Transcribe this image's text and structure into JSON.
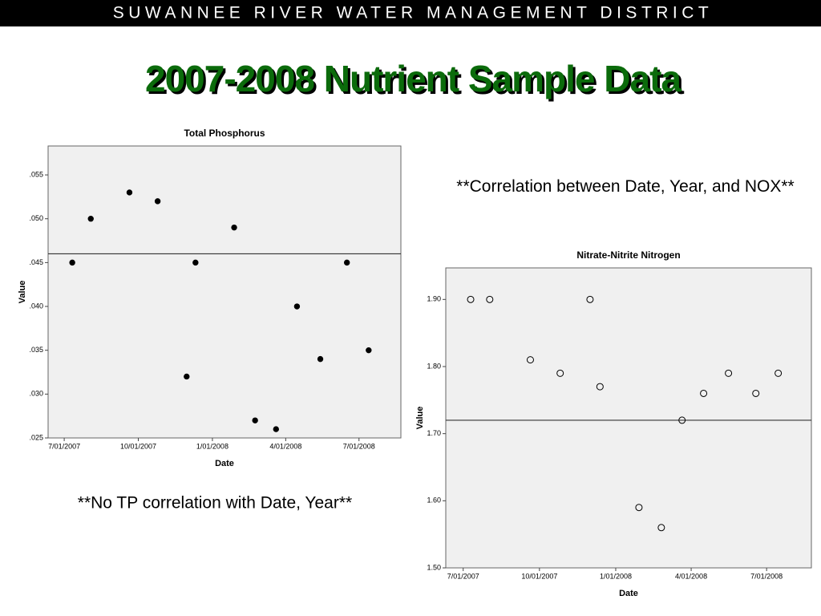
{
  "header": "SUWANNEE RIVER WATER MANAGEMENT DISTRICT",
  "title": "2007-2008 Nutrient Sample Data",
  "notes": [
    "**No TP correlation with Date, Year**",
    "**Correlation between Date, Year, and NOX**"
  ],
  "chart_data": [
    {
      "type": "scatter",
      "title": "Total Phosphorus",
      "x_label": "Date",
      "y_label": "Value",
      "marker": "filled",
      "color": "#000000",
      "reference_line": 0.046,
      "x": [
        "2007-07-11",
        "2007-08-03",
        "2007-09-20",
        "2007-10-25",
        "2007-11-30",
        "2007-12-11",
        "2008-01-28",
        "2008-02-23",
        "2008-03-20",
        "2008-04-15",
        "2008-05-14",
        "2008-06-16",
        "2008-07-13"
      ],
      "values": [
        0.045,
        0.05,
        0.053,
        0.052,
        0.032,
        0.045,
        0.049,
        0.027,
        0.026,
        0.04,
        0.034,
        0.045,
        0.035
      ],
      "xlim": [
        "2007-06-11",
        "2008-08-22"
      ],
      "xticks": [
        {
          "value": "2007-07-01",
          "label": "7/01/2007"
        },
        {
          "value": "2007-10-01",
          "label": "10/01/2007"
        },
        {
          "value": "2008-01-01",
          "label": "1/01/2008"
        },
        {
          "value": "2008-04-01",
          "label": "4/01/2008"
        },
        {
          "value": "2008-07-01",
          "label": "7/01/2008"
        }
      ],
      "ylim": [
        0.025,
        0.0583
      ],
      "yticks": [
        {
          "value": 0.025,
          "label": ".025"
        },
        {
          "value": 0.03,
          "label": ".030"
        },
        {
          "value": 0.035,
          "label": ".035"
        },
        {
          "value": 0.04,
          "label": ".040"
        },
        {
          "value": 0.045,
          "label": ".045"
        },
        {
          "value": 0.05,
          "label": ".050"
        },
        {
          "value": 0.055,
          "label": ".055"
        }
      ]
    },
    {
      "type": "scatter",
      "title": "Nitrate-Nitrite Nitrogen",
      "x_label": "Date",
      "y_label": "Value",
      "marker": "open",
      "color": "#000000",
      "reference_line": 1.72,
      "x": [
        "2007-07-10",
        "2007-08-02",
        "2007-09-20",
        "2007-10-26",
        "2007-12-01",
        "2007-12-13",
        "2008-01-29",
        "2008-02-25",
        "2008-03-21",
        "2008-04-16",
        "2008-05-16",
        "2008-06-18",
        "2008-07-15"
      ],
      "values": [
        1.9,
        1.9,
        1.81,
        1.79,
        1.9,
        1.77,
        1.59,
        1.56,
        1.72,
        1.76,
        1.79,
        1.76,
        1.79
      ],
      "xlim": [
        "2007-06-10",
        "2008-08-24"
      ],
      "xticks": [
        {
          "value": "2007-07-01",
          "label": "7/01/2007"
        },
        {
          "value": "2007-10-01",
          "label": "10/01/2007"
        },
        {
          "value": "2008-01-01",
          "label": "1/01/2008"
        },
        {
          "value": "2008-04-01",
          "label": "4/01/2008"
        },
        {
          "value": "2008-07-01",
          "label": "7/01/2008"
        }
      ],
      "ylim": [
        1.5,
        1.947
      ],
      "yticks": [
        {
          "value": 1.5,
          "label": "1.50"
        },
        {
          "value": 1.6,
          "label": "1.60"
        },
        {
          "value": 1.7,
          "label": "1.70"
        },
        {
          "value": 1.8,
          "label": "1.80"
        },
        {
          "value": 1.9,
          "label": "1.90"
        }
      ]
    }
  ]
}
